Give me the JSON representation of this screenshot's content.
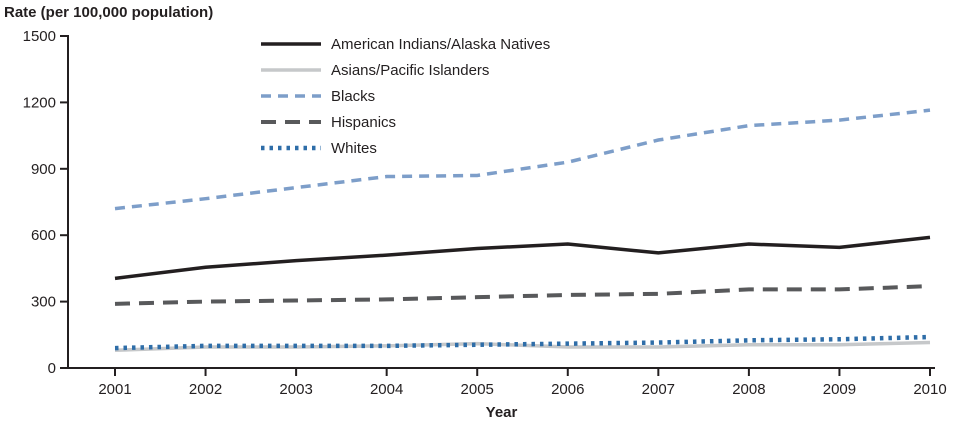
{
  "chart_data": {
    "type": "line",
    "title": "Rate (per 100,000 population)",
    "xlabel": "Year",
    "ylabel": "Rate (per 100,000 population)",
    "x": [
      2001,
      2002,
      2003,
      2004,
      2005,
      2006,
      2007,
      2008,
      2009,
      2010
    ],
    "ylim": [
      0,
      1500
    ],
    "yticks": [
      0,
      300,
      600,
      900,
      1200,
      1500
    ],
    "grid": false,
    "legend_position": "upper-left-inside",
    "axis_color": "#231f20",
    "series": [
      {
        "name": "American Indians/Alaska Natives",
        "color": "#231f20",
        "style": "solid",
        "values": [
          405,
          455,
          485,
          510,
          540,
          560,
          520,
          560,
          545,
          590
        ]
      },
      {
        "name": "Asians/Pacific Islanders",
        "color": "#c6c8ca",
        "style": "solid",
        "values": [
          80,
          95,
          95,
          100,
          110,
          95,
          95,
          105,
          105,
          115
        ]
      },
      {
        "name": "Blacks",
        "color": "#7d9ec9",
        "style": "dashed",
        "values": [
          720,
          765,
          815,
          865,
          870,
          930,
          1030,
          1095,
          1120,
          1165
        ]
      },
      {
        "name": "Hispanics",
        "color": "#58595b",
        "style": "long-dash",
        "values": [
          290,
          300,
          305,
          310,
          320,
          330,
          335,
          355,
          355,
          370
        ]
      },
      {
        "name": "Whites",
        "color": "#2e6da8",
        "style": "dotted",
        "values": [
          90,
          100,
          100,
          100,
          105,
          110,
          115,
          125,
          130,
          140
        ]
      }
    ]
  }
}
